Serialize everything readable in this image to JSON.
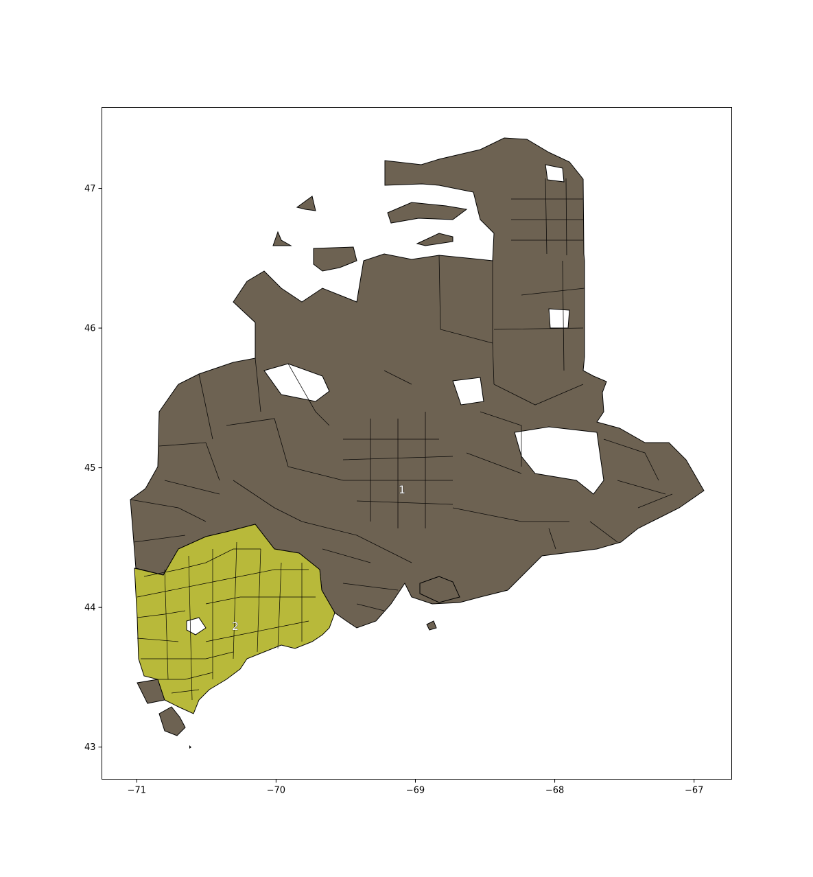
{
  "chart_data": {
    "type": "choropleth_map",
    "x_ticks": [
      "−71",
      "−70",
      "−69",
      "−68",
      "−67"
    ],
    "y_ticks": [
      "43",
      "44",
      "45",
      "46",
      "47"
    ],
    "x_tick_values": [
      -71,
      -70,
      -69,
      -68,
      -67
    ],
    "y_tick_values": [
      43,
      44,
      45,
      46,
      47
    ],
    "xlim": [
      -71.25,
      -66.73
    ],
    "ylim": [
      42.77,
      47.58
    ],
    "districts": [
      {
        "label": "1",
        "color": "#6d6252",
        "label_lon": -69.09,
        "label_lat": 44.83
      },
      {
        "label": "2",
        "color": "#b8b93a",
        "label_lon": -70.29,
        "label_lat": 43.85
      }
    ]
  }
}
